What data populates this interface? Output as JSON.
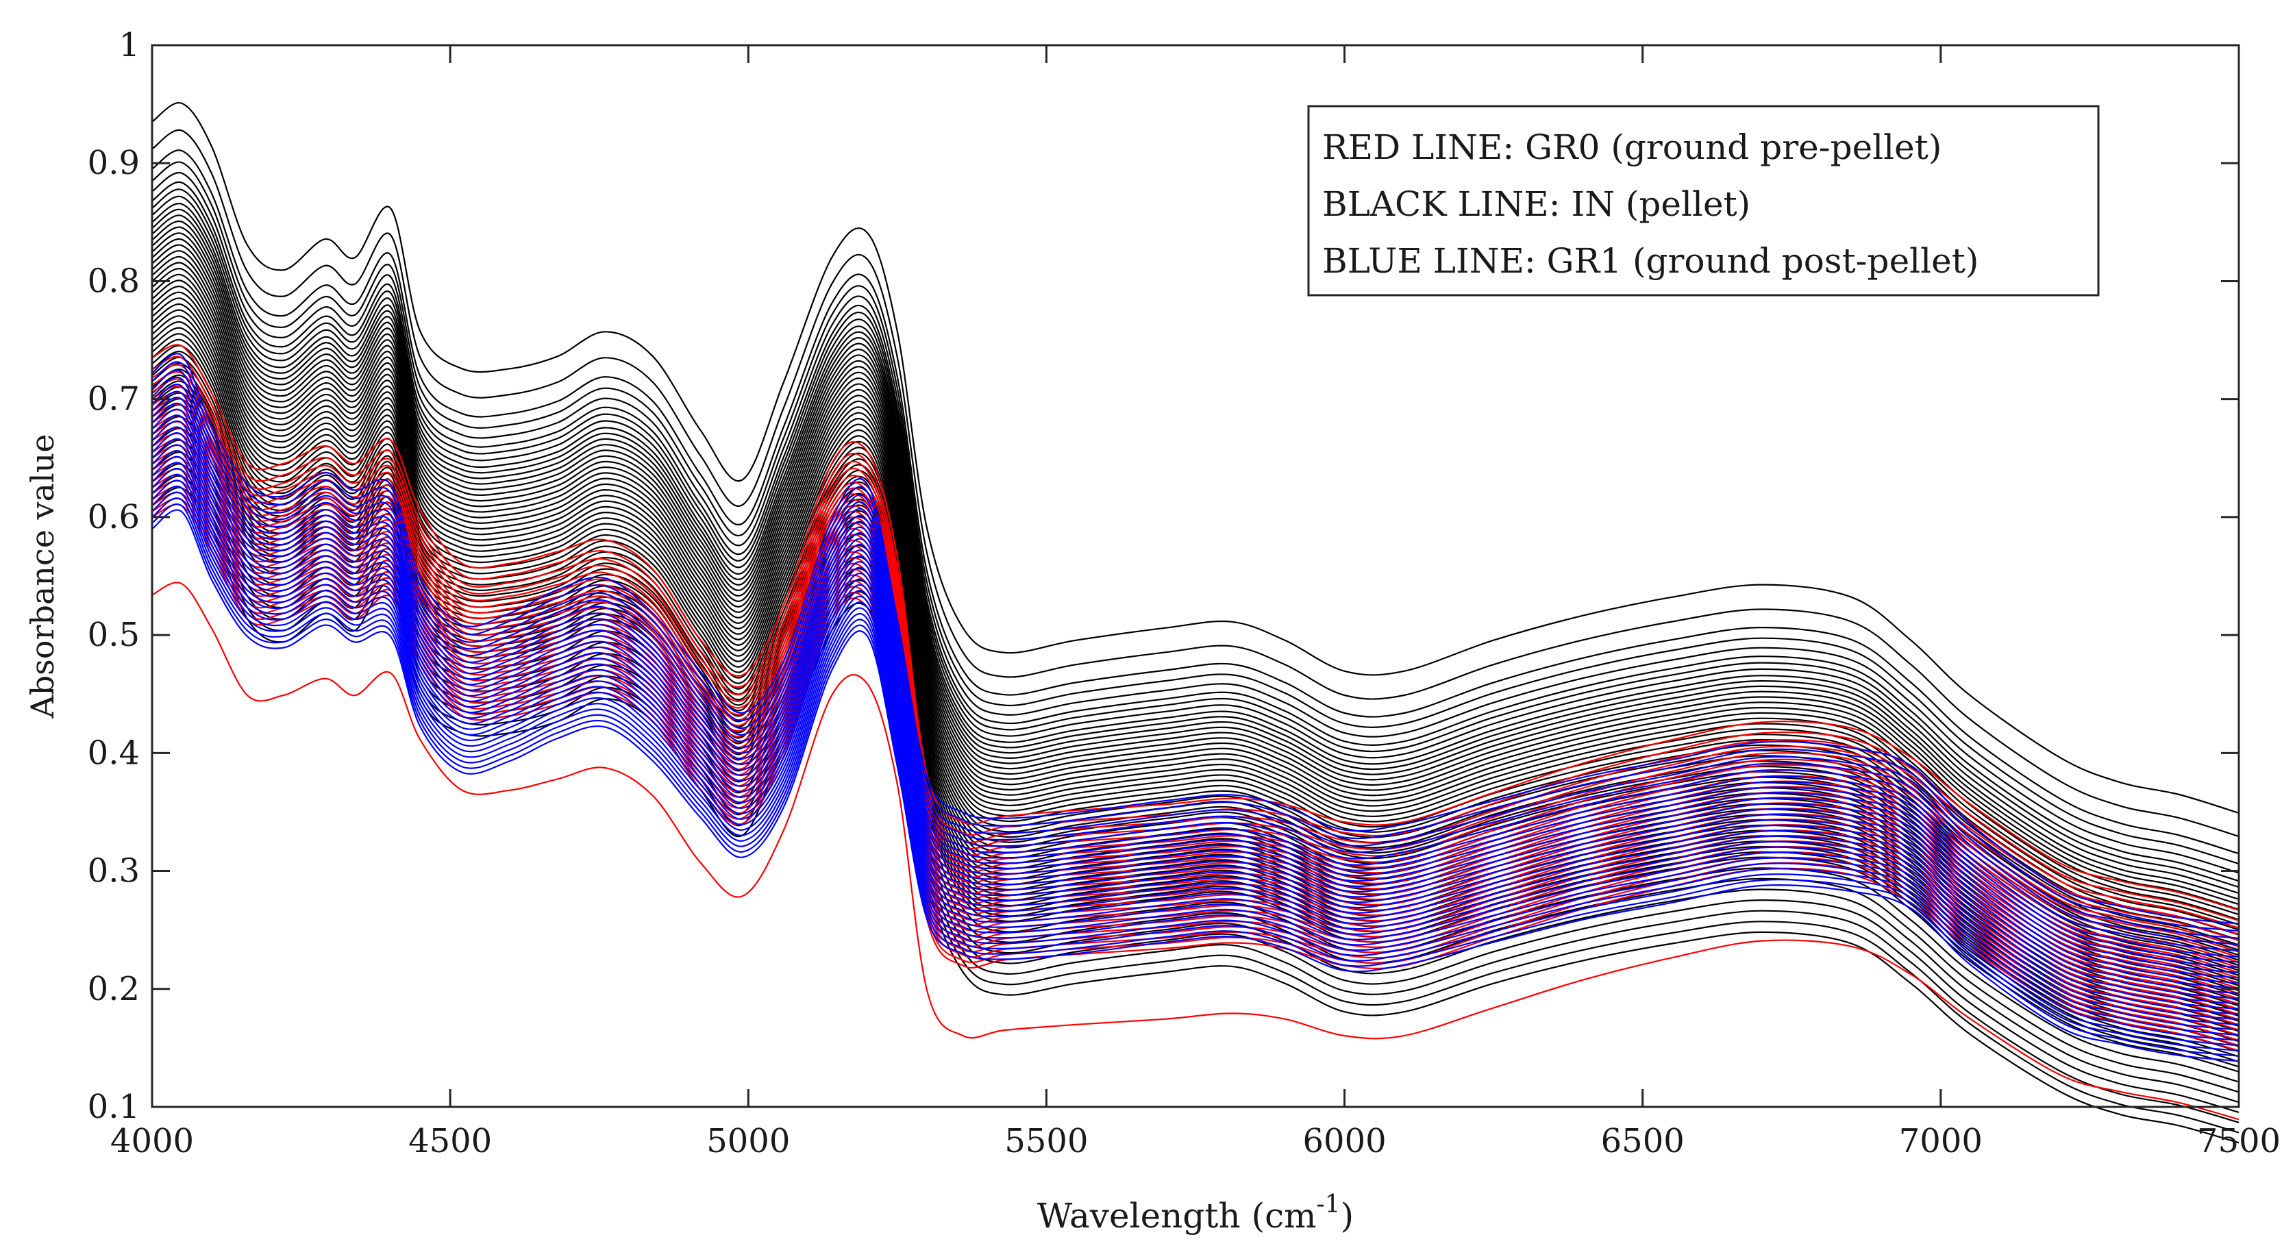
{
  "chart_data": {
    "type": "line",
    "title": "",
    "xlabel_main": "Wavelength (cm",
    "xlabel_sup": "-1",
    "xlabel_end": ")",
    "ylabel": "Absorbance value",
    "xlim": [
      4000,
      7500
    ],
    "ylim": [
      0.1,
      1.0
    ],
    "xticks": [
      4000,
      4500,
      5000,
      5500,
      6000,
      6500,
      7000,
      7500
    ],
    "yticks": [
      0.1,
      0.2,
      0.3,
      0.4,
      0.5,
      0.6,
      0.7,
      0.8,
      0.9,
      1.0
    ],
    "ytick_labels": [
      "0.1",
      "0.2",
      "0.3",
      "0.4",
      "0.5",
      "0.6",
      "0.7",
      "0.8",
      "0.9",
      "1"
    ],
    "grid": false,
    "legend_position": "top-right",
    "legend": [
      "RED LINE: GR0 (ground pre-pellet)",
      "BLACK LINE: IN (pellet)",
      "BLUE LINE: GR1 (ground post-pellet)"
    ],
    "x": [
      4000,
      4050,
      4100,
      4160,
      4220,
      4290,
      4340,
      4400,
      4450,
      4520,
      4600,
      4680,
      4760,
      4840,
      4920,
      4990,
      5060,
      5140,
      5200,
      5250,
      5300,
      5360,
      5430,
      5550,
      5700,
      5810,
      5900,
      6000,
      6100,
      6250,
      6400,
      6550,
      6700,
      6850,
      6950,
      7050,
      7200,
      7300,
      7400,
      7500
    ],
    "profiles": {
      "black": [
        0.0,
        0.015,
        -0.02,
        -0.1,
        -0.12,
        -0.095,
        -0.11,
        -0.07,
        -0.17,
        -0.2,
        -0.2,
        -0.19,
        -0.17,
        -0.19,
        -0.25,
        -0.29,
        -0.21,
        -0.11,
        -0.09,
        -0.17,
        -0.33,
        -0.41,
        -0.43,
        -0.42,
        -0.41,
        -0.405,
        -0.42,
        -0.445,
        -0.445,
        -0.42,
        -0.4,
        -0.385,
        -0.375,
        -0.385,
        -0.42,
        -0.465,
        -0.515,
        -0.535,
        -0.545,
        -0.56
      ],
      "red": [
        0.0,
        0.01,
        -0.03,
        -0.09,
        -0.09,
        -0.075,
        -0.09,
        -0.07,
        -0.13,
        -0.175,
        -0.175,
        -0.165,
        -0.155,
        -0.18,
        -0.24,
        -0.27,
        -0.21,
        -0.09,
        -0.08,
        -0.17,
        -0.355,
        -0.395,
        -0.39,
        -0.385,
        -0.38,
        -0.375,
        -0.38,
        -0.395,
        -0.395,
        -0.37,
        -0.345,
        -0.325,
        -0.31,
        -0.315,
        -0.34,
        -0.38,
        -0.43,
        -0.445,
        -0.455,
        -0.47
      ],
      "blue": [
        0.0,
        0.015,
        -0.045,
        -0.095,
        -0.105,
        -0.085,
        -0.1,
        -0.095,
        -0.175,
        -0.215,
        -0.205,
        -0.185,
        -0.175,
        -0.205,
        -0.255,
        -0.29,
        -0.245,
        -0.125,
        -0.095,
        -0.21,
        -0.345,
        -0.375,
        -0.38,
        -0.375,
        -0.365,
        -0.36,
        -0.37,
        -0.39,
        -0.385,
        -0.365,
        -0.345,
        -0.33,
        -0.315,
        -0.32,
        -0.335,
        -0.385,
        -0.44,
        -0.455,
        -0.465,
        -0.47
      ]
    },
    "series": [
      {
        "name": "IN (pellet)",
        "color": "#000000",
        "profile": "black",
        "start_values": [
          0.935,
          0.912,
          0.895,
          0.885,
          0.876,
          0.868,
          0.862,
          0.856,
          0.85,
          0.845,
          0.84,
          0.835,
          0.83,
          0.825,
          0.82,
          0.815,
          0.81,
          0.805,
          0.8,
          0.795,
          0.79,
          0.785,
          0.78,
          0.775,
          0.77,
          0.765,
          0.76,
          0.755,
          0.75,
          0.745,
          0.74,
          0.735,
          0.73,
          0.725,
          0.72,
          0.715,
          0.71,
          0.705,
          0.7,
          0.695,
          0.69,
          0.685,
          0.68,
          0.67,
          0.66,
          0.65,
          0.64,
          0.63,
          0.62,
          0.61
        ]
      },
      {
        "name": "GR0 (ground pre-pellet)",
        "color": "#ff0000",
        "profile": "red",
        "start_values": [
          0.735,
          0.725,
          0.718,
          0.712,
          0.706,
          0.7,
          0.695,
          0.69,
          0.685,
          0.68,
          0.675,
          0.67,
          0.665,
          0.66,
          0.655,
          0.65,
          0.645,
          0.64,
          0.635,
          0.63,
          0.625,
          0.62,
          0.615,
          0.61,
          0.605,
          0.6,
          0.534
        ]
      },
      {
        "name": "GR1 (ground post-pellet)",
        "color": "#0000ff",
        "profile": "blue",
        "start_values": [
          0.722,
          0.715,
          0.708,
          0.702,
          0.696,
          0.69,
          0.685,
          0.68,
          0.675,
          0.67,
          0.665,
          0.66,
          0.655,
          0.65,
          0.645,
          0.64,
          0.635,
          0.63,
          0.625,
          0.62,
          0.615,
          0.61,
          0.605,
          0.6,
          0.595,
          0.59
        ]
      }
    ]
  }
}
